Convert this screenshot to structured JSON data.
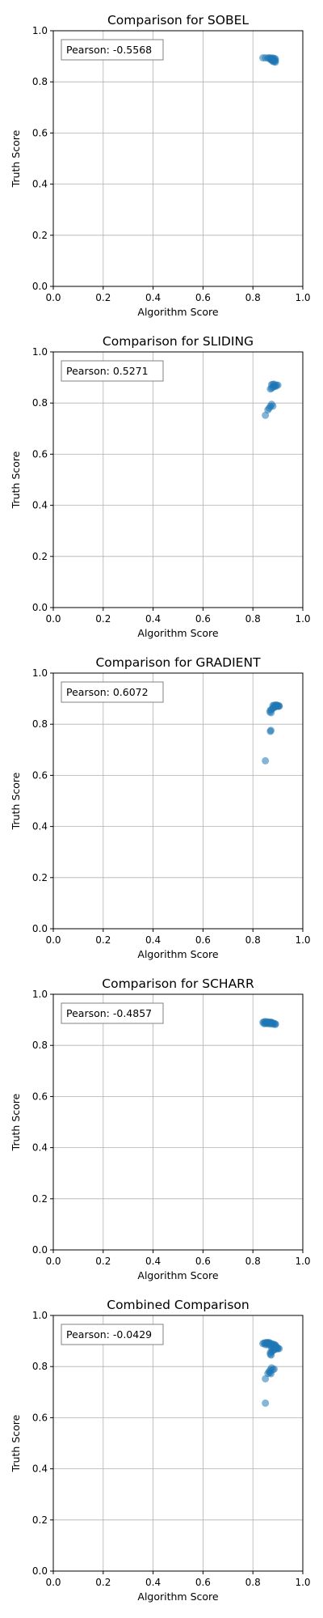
{
  "chart_data": [
    {
      "type": "scatter",
      "title": "Comparison for SOBEL",
      "xlabel": "Algorithm Score",
      "ylabel": "Truth Score",
      "xlim": [
        0,
        1
      ],
      "ylim": [
        0,
        1
      ],
      "xticks": [
        "0.0",
        "0.2",
        "0.4",
        "0.6",
        "0.8",
        "1.0"
      ],
      "yticks": [
        "0.0",
        "0.2",
        "0.4",
        "0.6",
        "0.8",
        "1.0"
      ],
      "grid": true,
      "annotation": "Pearson: -0.5568",
      "color": "#1f77b4",
      "x": [
        0.84,
        0.85,
        0.86,
        0.865,
        0.87,
        0.875,
        0.88,
        0.885,
        0.89,
        0.87,
        0.875,
        0.88,
        0.885,
        0.89,
        0.88,
        0.885,
        0.89,
        0.875
      ],
      "y": [
        0.894,
        0.894,
        0.893,
        0.894,
        0.893,
        0.892,
        0.893,
        0.892,
        0.89,
        0.888,
        0.887,
        0.886,
        0.885,
        0.883,
        0.88,
        0.879,
        0.877,
        0.885
      ]
    },
    {
      "type": "scatter",
      "title": "Comparison for SLIDING",
      "xlabel": "Algorithm Score",
      "ylabel": "Truth Score",
      "xlim": [
        0,
        1
      ],
      "ylim": [
        0,
        1
      ],
      "xticks": [
        "0.0",
        "0.2",
        "0.4",
        "0.6",
        "0.8",
        "1.0"
      ],
      "yticks": [
        "0.0",
        "0.2",
        "0.4",
        "0.6",
        "0.8",
        "1.0"
      ],
      "grid": true,
      "annotation": "Pearson: 0.5271",
      "color": "#1f77b4",
      "x": [
        0.85,
        0.86,
        0.865,
        0.87,
        0.875,
        0.88,
        0.87,
        0.875,
        0.88,
        0.885,
        0.89,
        0.895,
        0.9,
        0.875,
        0.88,
        0.885,
        0.89
      ],
      "y": [
        0.752,
        0.773,
        0.78,
        0.787,
        0.795,
        0.788,
        0.855,
        0.858,
        0.862,
        0.866,
        0.868,
        0.87,
        0.87,
        0.872,
        0.873,
        0.874,
        0.865
      ]
    },
    {
      "type": "scatter",
      "title": "Comparison for GRADIENT",
      "xlabel": "Algorithm Score",
      "ylabel": "Truth Score",
      "xlim": [
        0,
        1
      ],
      "ylim": [
        0,
        1
      ],
      "xticks": [
        "0.0",
        "0.2",
        "0.4",
        "0.6",
        "0.8",
        "1.0"
      ],
      "yticks": [
        "0.0",
        "0.2",
        "0.4",
        "0.6",
        "0.8",
        "1.0"
      ],
      "grid": true,
      "annotation": "Pearson: 0.6072",
      "color": "#1f77b4",
      "x": [
        0.85,
        0.87,
        0.872,
        0.868,
        0.873,
        0.87,
        0.875,
        0.88,
        0.885,
        0.89,
        0.895,
        0.9,
        0.905,
        0.88,
        0.885,
        0.89,
        0.895,
        0.9,
        0.905
      ],
      "y": [
        0.657,
        0.772,
        0.776,
        0.848,
        0.845,
        0.855,
        0.858,
        0.862,
        0.866,
        0.868,
        0.87,
        0.871,
        0.872,
        0.873,
        0.874,
        0.875,
        0.875,
        0.873,
        0.87
      ]
    },
    {
      "type": "scatter",
      "title": "Comparison for SCHARR",
      "xlabel": "Algorithm Score",
      "ylabel": "Truth Score",
      "xlim": [
        0,
        1
      ],
      "ylim": [
        0,
        1
      ],
      "xticks": [
        "0.0",
        "0.2",
        "0.4",
        "0.6",
        "0.8",
        "1.0"
      ],
      "yticks": [
        "0.0",
        "0.2",
        "0.4",
        "0.6",
        "0.8",
        "1.0"
      ],
      "grid": true,
      "annotation": "Pearson: -0.4857",
      "color": "#1f77b4",
      "x": [
        0.84,
        0.845,
        0.85,
        0.855,
        0.86,
        0.865,
        0.87,
        0.875,
        0.88,
        0.885,
        0.89,
        0.85,
        0.86,
        0.87,
        0.88,
        0.89,
        0.845,
        0.855,
        0.865,
        0.875
      ],
      "y": [
        0.89,
        0.892,
        0.893,
        0.891,
        0.892,
        0.89,
        0.891,
        0.889,
        0.887,
        0.886,
        0.884,
        0.886,
        0.885,
        0.884,
        0.883,
        0.882,
        0.885,
        0.887,
        0.888,
        0.89
      ]
    },
    {
      "type": "scatter",
      "title": "Combined Comparison",
      "xlabel": "Algorithm Score",
      "ylabel": "Truth Score",
      "xlim": [
        0,
        1
      ],
      "ylim": [
        0,
        1
      ],
      "xticks": [
        "0.0",
        "0.2",
        "0.4",
        "0.6",
        "0.8",
        "1.0"
      ],
      "yticks": [
        "0.0",
        "0.2",
        "0.4",
        "0.6",
        "0.8",
        "1.0"
      ],
      "grid": true,
      "annotation": "Pearson: -0.0429",
      "color": "#1f77b4",
      "x": [
        0.84,
        0.845,
        0.85,
        0.855,
        0.86,
        0.865,
        0.87,
        0.875,
        0.88,
        0.885,
        0.89,
        0.85,
        0.86,
        0.87,
        0.88,
        0.89,
        0.875,
        0.88,
        0.885,
        0.89,
        0.895,
        0.9,
        0.905,
        0.87,
        0.875,
        0.88,
        0.885,
        0.89,
        0.895,
        0.9,
        0.87,
        0.872,
        0.868,
        0.873,
        0.85,
        0.86,
        0.865,
        0.87,
        0.875,
        0.88,
        0.885,
        0.85,
        0.855,
        0.86,
        0.865
      ],
      "y": [
        0.89,
        0.892,
        0.893,
        0.891,
        0.892,
        0.89,
        0.891,
        0.889,
        0.887,
        0.886,
        0.884,
        0.886,
        0.885,
        0.884,
        0.883,
        0.882,
        0.872,
        0.873,
        0.874,
        0.875,
        0.875,
        0.873,
        0.87,
        0.855,
        0.858,
        0.862,
        0.866,
        0.868,
        0.87,
        0.87,
        0.848,
        0.772,
        0.776,
        0.845,
        0.752,
        0.773,
        0.78,
        0.787,
        0.795,
        0.788,
        0.79,
        0.657,
        0.894,
        0.893,
        0.894
      ]
    }
  ]
}
